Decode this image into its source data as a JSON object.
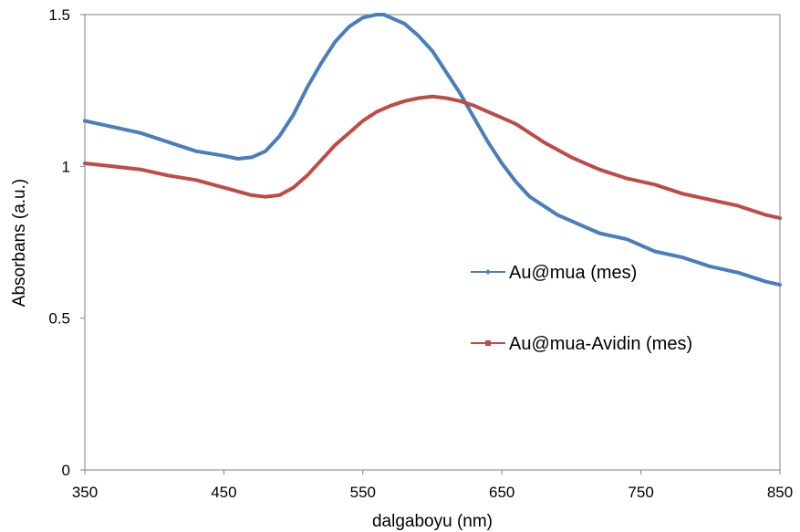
{
  "chart_data": {
    "type": "line",
    "xlabel": "dalgaboyu (nm)",
    "ylabel": "Absorbans (a.u.)",
    "xlim": [
      350,
      850
    ],
    "ylim": [
      0,
      1.5
    ],
    "xticks": [
      350,
      450,
      550,
      650,
      750,
      850
    ],
    "xtick_labels": [
      "350",
      "450",
      "550",
      "650",
      "750",
      "850"
    ],
    "yticks": [
      0,
      0.5,
      1,
      1.5
    ],
    "ytick_labels": [
      "0",
      "0.5",
      "1",
      "1.5"
    ],
    "grid": false,
    "legend_position": "right",
    "series": [
      {
        "name": "Au@mua (mes)",
        "color": "#4a7ebb",
        "marker": "diamond",
        "x": [
          350,
          370,
          390,
          410,
          430,
          450,
          460,
          470,
          480,
          490,
          500,
          510,
          520,
          530,
          540,
          550,
          560,
          565,
          570,
          580,
          590,
          600,
          610,
          620,
          630,
          640,
          650,
          660,
          670,
          680,
          690,
          700,
          720,
          740,
          760,
          780,
          800,
          820,
          840,
          850
        ],
        "y": [
          1.15,
          1.13,
          1.11,
          1.08,
          1.05,
          1.035,
          1.025,
          1.03,
          1.05,
          1.1,
          1.17,
          1.26,
          1.34,
          1.41,
          1.46,
          1.49,
          1.5,
          1.5,
          1.49,
          1.47,
          1.43,
          1.38,
          1.31,
          1.24,
          1.16,
          1.08,
          1.01,
          0.95,
          0.9,
          0.87,
          0.84,
          0.82,
          0.78,
          0.76,
          0.72,
          0.7,
          0.67,
          0.65,
          0.62,
          0.61
        ]
      },
      {
        "name": "Au@mua-Avidin (mes)",
        "color": "#be4b48",
        "marker": "square",
        "x": [
          350,
          370,
          390,
          410,
          430,
          450,
          470,
          480,
          490,
          500,
          510,
          520,
          530,
          540,
          550,
          560,
          570,
          580,
          590,
          600,
          610,
          620,
          630,
          640,
          650,
          660,
          670,
          680,
          700,
          720,
          740,
          760,
          780,
          800,
          820,
          840,
          850
        ],
        "y": [
          1.01,
          1.0,
          0.99,
          0.97,
          0.955,
          0.93,
          0.905,
          0.9,
          0.905,
          0.93,
          0.97,
          1.02,
          1.07,
          1.11,
          1.15,
          1.18,
          1.2,
          1.215,
          1.225,
          1.23,
          1.225,
          1.215,
          1.2,
          1.18,
          1.16,
          1.14,
          1.11,
          1.08,
          1.03,
          0.99,
          0.96,
          0.94,
          0.91,
          0.89,
          0.87,
          0.84,
          0.83
        ]
      }
    ]
  }
}
